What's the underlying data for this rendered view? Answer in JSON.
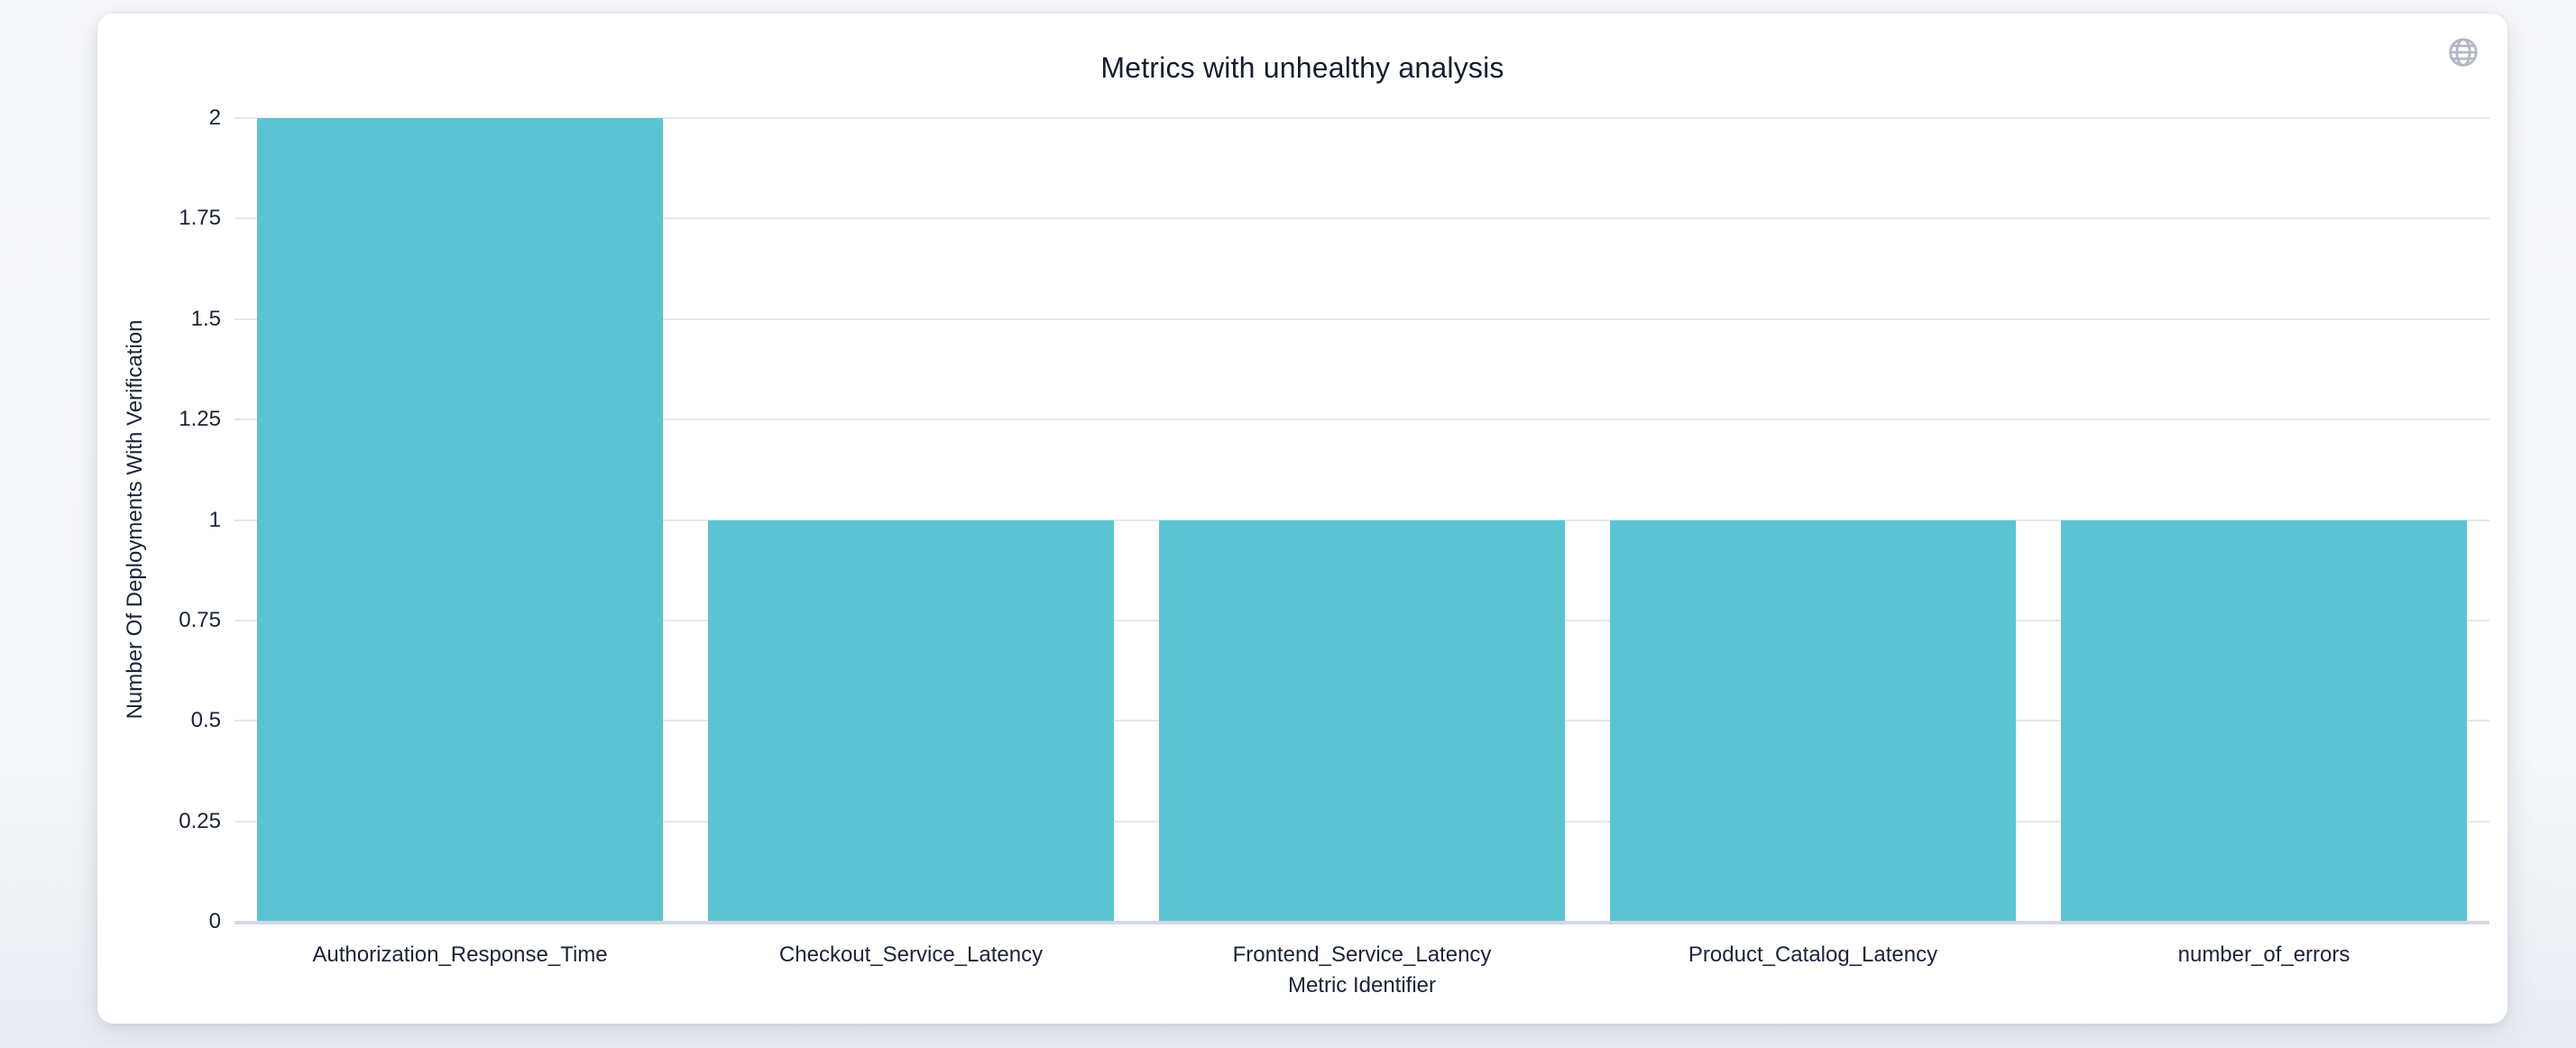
{
  "chart_data": {
    "type": "bar",
    "title": "Metrics with unhealthy analysis",
    "categories": [
      "Authorization_Response_Time",
      "Checkout_Service_Latency",
      "Frontend_Service_Latency",
      "Product_Catalog_Latency",
      "number_of_errors"
    ],
    "values": [
      2,
      1,
      1,
      1,
      1
    ],
    "xlabel": "Metric Identifier",
    "ylabel": "Number Of Deployments With Verification",
    "ylim": [
      0,
      2
    ],
    "yticks": [
      0,
      0.25,
      0.5,
      0.75,
      1,
      1.25,
      1.5,
      1.75,
      2
    ],
    "grid": true,
    "legend_position": "none",
    "bar_gap_ratio": 0.1
  },
  "icons": {
    "globe": "globe-icon"
  },
  "colors": {
    "bar": "#5bc4d2",
    "gridline": "#e7e7e7",
    "axis_line": "#d2d8e6",
    "text": "#1a2438",
    "title_text": "#131f31",
    "card_bg": "#ffffff",
    "page_bg": "#f4f6f8",
    "icon": "#b2b8c3"
  }
}
